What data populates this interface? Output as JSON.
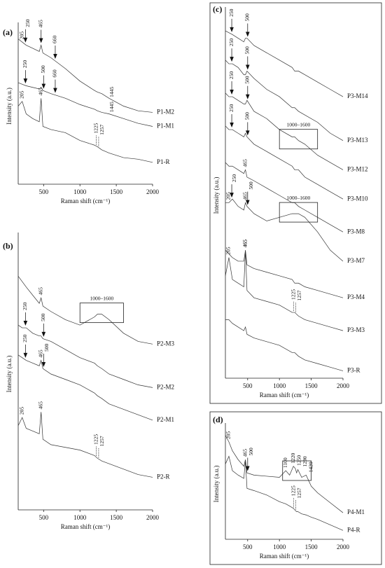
{
  "chart_data": [
    {
      "type": "line",
      "label": "(a)",
      "xlabel": "Raman shift (cm⁻¹)",
      "ylabel": "Intensity (a.u.)",
      "xlim": [
        150,
        2000
      ],
      "xticks": [
        500,
        1000,
        1500,
        2000
      ],
      "ylim": [
        0,
        100
      ],
      "color": "#333333",
      "frame": false,
      "x": [
        150,
        205,
        260,
        350,
        440,
        465,
        490,
        600,
        800,
        1000,
        1200,
        1240,
        1300,
        1400,
        1600,
        1800,
        2000
      ],
      "series": [
        {
          "name": "P1-M2",
          "values": [
            93,
            91,
            89,
            87,
            85,
            89,
            84,
            81,
            74,
            66,
            60,
            59,
            58,
            55,
            50,
            47,
            46
          ]
        },
        {
          "name": "P1-M1",
          "values": [
            65,
            64,
            63,
            62,
            61,
            62,
            60,
            58,
            55,
            51,
            48,
            47,
            46,
            45,
            42,
            39,
            37
          ]
        },
        {
          "name": "P1-R",
          "values": [
            50,
            53,
            45,
            42,
            40,
            55,
            37,
            35,
            33,
            28,
            25,
            24,
            22,
            20,
            17,
            16,
            14
          ]
        }
      ],
      "annotations": [
        {
          "text": "205",
          "x": 205,
          "series": 0
        },
        {
          "text": "250",
          "x": 250,
          "series": 0,
          "arrow": true
        },
        {
          "text": "465",
          "x": 465,
          "series": 0,
          "arrow": true
        },
        {
          "text": "660",
          "x": 660,
          "series": 0,
          "arrow": true
        },
        {
          "text": "1445",
          "x": 1445,
          "series": 0
        },
        {
          "text": "250",
          "x": 250,
          "series": 1,
          "arrow": true
        },
        {
          "text": "500",
          "x": 500,
          "series": 1,
          "arrow": true
        },
        {
          "text": "660",
          "x": 660,
          "series": 1,
          "arrow": true
        },
        {
          "text": "1445",
          "x": 1445,
          "series": 1
        },
        {
          "text": "205",
          "x": 205,
          "series": 2
        },
        {
          "text": "465",
          "x": 465,
          "series": 2
        },
        {
          "text": "1225",
          "x": 1225,
          "series": 2,
          "dotted": true
        },
        {
          "text": "1257",
          "x": 1257,
          "series": 2,
          "dotted": true
        }
      ]
    },
    {
      "type": "line",
      "label": "(b)",
      "xlabel": "Raman shift (cm⁻¹)",
      "ylabel": "Intensity (a.u.)",
      "xlim": [
        150,
        2000
      ],
      "xticks": [
        500,
        1000,
        1500,
        2000
      ],
      "ylim": [
        0,
        100
      ],
      "color": "#333333",
      "frame": false,
      "x": [
        150,
        205,
        260,
        350,
        440,
        465,
        490,
        600,
        800,
        1000,
        1200,
        1240,
        1300,
        1400,
        1600,
        1800,
        2000
      ],
      "series": [
        {
          "name": "P2-M3",
          "values": [
            86,
            84,
            82,
            79,
            76,
            78,
            75,
            73,
            70,
            68,
            71,
            72,
            72,
            70,
            65,
            62,
            61
          ]
        },
        {
          "name": "P2-M2",
          "values": [
            68,
            67,
            67,
            65,
            64,
            64,
            63,
            62,
            59,
            56,
            54,
            53,
            52,
            50,
            48,
            46,
            45
          ]
        },
        {
          "name": "P2-M1",
          "values": [
            57,
            56,
            55,
            54,
            53,
            55,
            52,
            50,
            48,
            46,
            43,
            42,
            41,
            39,
            37,
            35,
            33
          ]
        },
        {
          "name": "P2-R",
          "values": [
            31,
            34,
            30,
            29,
            28,
            36,
            26,
            24,
            23,
            22,
            20,
            19,
            18,
            17,
            15,
            13,
            12
          ]
        }
      ],
      "annotations": [
        {
          "text": "465",
          "x": 465,
          "series": 0
        },
        {
          "text": "1000–1600",
          "range": [
            1000,
            1600
          ],
          "series": 0
        },
        {
          "text": "250",
          "x": 250,
          "series": 1,
          "arrow": true
        },
        {
          "text": "500",
          "x": 500,
          "series": 1,
          "arrow": true
        },
        {
          "text": "250",
          "x": 250,
          "series": 2,
          "arrow": true
        },
        {
          "text": "465",
          "x": 465,
          "series": 2
        },
        {
          "text": "500",
          "x": 500,
          "series": 2,
          "arrow": true
        },
        {
          "text": "205",
          "x": 205,
          "series": 3
        },
        {
          "text": "465",
          "x": 465,
          "series": 3
        },
        {
          "text": "1225",
          "x": 1225,
          "series": 3,
          "dotted": true
        },
        {
          "text": "1257",
          "x": 1257,
          "series": 3,
          "dotted": true
        }
      ]
    },
    {
      "type": "line",
      "label": "(c)",
      "xlabel": "Raman shift (cm⁻¹)",
      "ylabel": "Intensity (a.u.)",
      "xlim": [
        150,
        2000
      ],
      "xticks": [
        500,
        1000,
        1500,
        2000
      ],
      "ylim": [
        0,
        100
      ],
      "color": "#333333",
      "frame": true,
      "x": [
        150,
        205,
        260,
        350,
        440,
        465,
        490,
        600,
        800,
        1000,
        1200,
        1240,
        1300,
        1400,
        1600,
        1800,
        2000
      ],
      "series": [
        {
          "name": "P3-M14",
          "values": [
            95,
            94.5,
            94,
            93,
            92,
            93,
            93,
            91,
            89,
            87,
            85,
            84,
            84,
            83,
            81,
            79,
            77
          ]
        },
        {
          "name": "P3-M13",
          "values": [
            87,
            86,
            86,
            85,
            83,
            83,
            84,
            82,
            79,
            77,
            74,
            74,
            73,
            72,
            70,
            67,
            65
          ]
        },
        {
          "name": "P3-M12",
          "values": [
            78,
            77,
            77,
            76,
            75,
            75,
            76,
            73,
            71,
            68,
            66,
            66,
            65,
            64,
            61,
            59,
            57
          ]
        },
        {
          "name": "P3-M10",
          "values": [
            69,
            68,
            68,
            67,
            66,
            67,
            66,
            64,
            62,
            60,
            58,
            57,
            57,
            55,
            53,
            51,
            49
          ]
        },
        {
          "name": "P3-M8",
          "values": [
            59,
            58,
            58,
            57,
            56,
            57,
            55,
            54,
            52,
            50,
            48,
            48,
            47,
            46,
            44,
            42,
            40
          ]
        },
        {
          "name": "P3-M7",
          "values": [
            48,
            48,
            49,
            47,
            46,
            48,
            47,
            45,
            43,
            44,
            45,
            45,
            45,
            44,
            40,
            35,
            32
          ]
        },
        {
          "name": "P3-M4",
          "values": [
            35,
            34,
            33,
            32,
            32,
            35,
            31,
            30,
            29,
            28,
            27,
            26,
            26,
            25,
            24,
            23,
            22
          ]
        },
        {
          "name": "P3-M3",
          "values": [
            28,
            33,
            27,
            26,
            25,
            35,
            24,
            22,
            21,
            20,
            18,
            18,
            17,
            16,
            15,
            14,
            13
          ]
        },
        {
          "name": "P3-R",
          "values": [
            16,
            16,
            15,
            14,
            13,
            14,
            12,
            11,
            10,
            9,
            7,
            7,
            6,
            5,
            4,
            3,
            2
          ]
        }
      ],
      "annotations": [
        {
          "text": "250",
          "x": 250,
          "series": 0,
          "arrow": true
        },
        {
          "text": "500",
          "x": 500,
          "series": 0,
          "arrow": true
        },
        {
          "text": "250",
          "x": 250,
          "series": 1,
          "arrow": true
        },
        {
          "text": "500",
          "x": 500,
          "series": 1,
          "arrow": true
        },
        {
          "text": "250",
          "x": 250,
          "series": 2,
          "arrow": true
        },
        {
          "text": "500",
          "x": 500,
          "series": 2,
          "arrow": true
        },
        {
          "text": "1000–1600",
          "range": [
            1000,
            1600
          ],
          "series": 2
        },
        {
          "text": "250",
          "x": 250,
          "series": 3,
          "arrow": true
        },
        {
          "text": "500",
          "x": 500,
          "series": 3,
          "arrow": true
        },
        {
          "text": "465",
          "x": 465,
          "series": 4
        },
        {
          "text": "205",
          "x": 205,
          "series": 5
        },
        {
          "text": "250",
          "x": 250,
          "series": 5,
          "arrow": true
        },
        {
          "text": "465",
          "x": 465,
          "series": 5
        },
        {
          "text": "500",
          "x": 500,
          "series": 5,
          "arrow": true
        },
        {
          "text": "1000–1600",
          "range": [
            1000,
            1600
          ],
          "series": 5
        },
        {
          "text": "465",
          "x": 465,
          "series": 6
        },
        {
          "text": "205",
          "x": 205,
          "series": 7
        },
        {
          "text": "465",
          "x": 465,
          "series": 7
        },
        {
          "text": "1225",
          "x": 1225,
          "series": 7,
          "dotted": true
        },
        {
          "text": "1257",
          "x": 1257,
          "series": 7,
          "dotted": true
        }
      ]
    },
    {
      "type": "line",
      "label": "(d)",
      "xlabel": "Raman shift (cm⁻¹)",
      "ylabel": "Intensity (a.u.)",
      "xlim": [
        150,
        2000
      ],
      "xticks": [
        500,
        1000,
        1500,
        2000
      ],
      "ylim": [
        0,
        100
      ],
      "color": "#333333",
      "frame": true,
      "x": [
        150,
        205,
        260,
        350,
        440,
        465,
        490,
        600,
        800,
        1000,
        1100,
        1160,
        1220,
        1250,
        1270,
        1290,
        1350,
        1420,
        1500,
        1600,
        1800,
        2000
      ],
      "series": [
        {
          "name": "P4-M1",
          "values": [
            94,
            88,
            80,
            72,
            66,
            72,
            60,
            58,
            57,
            56,
            62,
            58,
            66,
            64,
            60,
            63,
            56,
            58,
            48,
            42,
            33,
            24
          ]
        },
        {
          "name": "P4-R",
          "values": [
            68,
            75,
            62,
            58,
            55,
            71,
            46,
            44,
            40,
            34,
            32,
            30,
            28,
            26,
            25,
            25,
            23,
            22,
            20,
            18,
            13,
            8
          ]
        }
      ],
      "annotations": [
        {
          "text": "205",
          "x": 205,
          "series": 0
        },
        {
          "text": "465",
          "x": 465,
          "series": 0
        },
        {
          "text": "500",
          "x": 500,
          "series": 0,
          "arrow": true
        },
        {
          "range": [
            1050,
            1500
          ],
          "series": 0
        },
        {
          "text": "1100",
          "x": 1100,
          "series": 0
        },
        {
          "text": "1220",
          "x": 1220,
          "series": 0
        },
        {
          "text": "1250",
          "x": 1250,
          "series": 0
        },
        {
          "text": "1290",
          "x": 1290,
          "series": 0
        },
        {
          "text": "1420",
          "x": 1420,
          "series": 0
        },
        {
          "text": "1225",
          "x": 1225,
          "series": 1,
          "dotted": true
        },
        {
          "text": "1257",
          "x": 1257,
          "series": 1,
          "dotted": true
        }
      ]
    }
  ]
}
